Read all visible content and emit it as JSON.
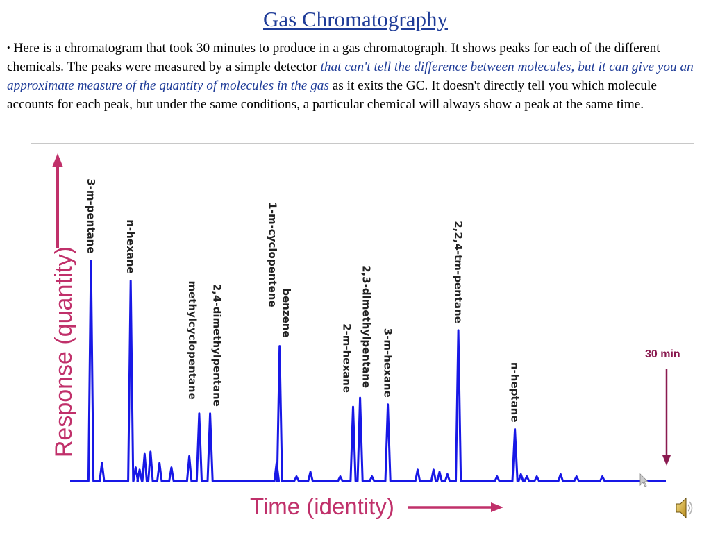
{
  "slide": {
    "title": "Gas Chromatography",
    "bullet": "•",
    "intro_part1": " Here is a chromatogram that took 30 minutes to produce in a gas chromatograph. It shows peaks for each of the different chemicals. The peaks were measured by a simple detector ",
    "intro_emph": "that can't tell the difference between molecules, but it can give you an approximate measure of the quantity of molecules in the gas",
    "intro_part2": " as it exits the GC.  It doesn't directly tell you which molecule accounts for each peak, but under the same conditions, a particular chemical will always show a peak at the same time."
  },
  "colors": {
    "title": "#1f3c98",
    "emphasis": "#1f3c98",
    "trace": "#1818e6",
    "axis_labels": "#c0306a",
    "annotation": "#8a1a50",
    "frame": "#c8c8c8"
  },
  "chart_data": {
    "type": "line",
    "title": "",
    "xlabel": "Time (identity)",
    "ylabel": "Response (quantity)",
    "xlim": [
      0,
      30
    ],
    "ylim": [
      0,
      100
    ],
    "x_axis_shown": false,
    "y_axis_shown": false,
    "grid": false,
    "annotation": {
      "text": "30 min",
      "x": 29.3
    },
    "peaks": [
      {
        "label": "3-m-pentane",
        "x": 1.05,
        "height": 98
      },
      {
        "label": "n-hexane",
        "x": 3.05,
        "height": 89
      },
      {
        "label": "2,4-dimethylpentane",
        "x": 7.05,
        "height": 30
      },
      {
        "label": "methylcyclopentane",
        "x": 6.5,
        "height": 30
      },
      {
        "label": "benzene",
        "x": 10.55,
        "height": 60
      },
      {
        "label": "1-m-cyclopentene",
        "x": 10.55,
        "height": 60
      },
      {
        "label": "2,3-dimethylpentane",
        "x": 14.6,
        "height": 37
      },
      {
        "label": "2-m-hexane",
        "x": 14.25,
        "height": 33
      },
      {
        "label": "3-m-hexane",
        "x": 16.0,
        "height": 34
      },
      {
        "label": "2,2,4-tm-pentane",
        "x": 19.55,
        "height": 67
      },
      {
        "label": "n-heptane",
        "x": 22.4,
        "height": 23
      }
    ],
    "minor_peaks": [
      {
        "x": 1.6,
        "height": 8
      },
      {
        "x": 3.3,
        "height": 6
      },
      {
        "x": 3.5,
        "height": 5
      },
      {
        "x": 3.75,
        "height": 12
      },
      {
        "x": 4.05,
        "height": 13
      },
      {
        "x": 4.5,
        "height": 8
      },
      {
        "x": 5.1,
        "height": 6
      },
      {
        "x": 6.0,
        "height": 11
      },
      {
        "x": 10.4,
        "height": 8
      },
      {
        "x": 11.4,
        "height": 2
      },
      {
        "x": 12.1,
        "height": 4
      },
      {
        "x": 13.6,
        "height": 2
      },
      {
        "x": 15.2,
        "height": 2
      },
      {
        "x": 17.5,
        "height": 5
      },
      {
        "x": 18.3,
        "height": 5
      },
      {
        "x": 18.6,
        "height": 4
      },
      {
        "x": 19.0,
        "height": 3
      },
      {
        "x": 21.5,
        "height": 2
      },
      {
        "x": 22.7,
        "height": 3
      },
      {
        "x": 23.0,
        "height": 2
      },
      {
        "x": 23.5,
        "height": 2
      },
      {
        "x": 24.7,
        "height": 3
      },
      {
        "x": 25.5,
        "height": 2
      },
      {
        "x": 26.8,
        "height": 2
      }
    ]
  }
}
